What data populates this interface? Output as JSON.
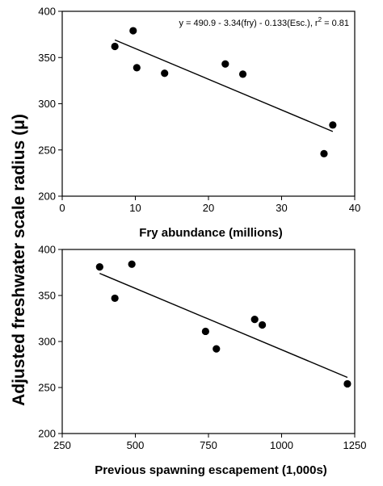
{
  "shared_ylabel": "Adjusted freshwater scale radius (μ)",
  "chart_data": [
    {
      "type": "scatter",
      "xlabel": "Fry abundance (millions)",
      "xlim": [
        0,
        40
      ],
      "ylim": [
        200,
        400
      ],
      "xticks": [
        0,
        10,
        20,
        30,
        40
      ],
      "yticks": [
        200,
        250,
        300,
        350,
        400
      ],
      "annotation": {
        "prefix": "y = 490.9 - 3.34(fry) - 0.133(Esc.),  r",
        "sup": "2",
        "suffix": " = 0.81"
      },
      "points": [
        {
          "x": 7.2,
          "y": 362
        },
        {
          "x": 9.7,
          "y": 379
        },
        {
          "x": 10.2,
          "y": 339
        },
        {
          "x": 14.0,
          "y": 333
        },
        {
          "x": 22.3,
          "y": 343
        },
        {
          "x": 24.7,
          "y": 332
        },
        {
          "x": 35.8,
          "y": 246
        },
        {
          "x": 37.0,
          "y": 277
        }
      ],
      "trendline": [
        [
          7.2,
          369
        ],
        [
          37.0,
          270
        ]
      ]
    },
    {
      "type": "scatter",
      "xlabel": "Previous spawning escapement (1,000s)",
      "xlim": [
        250,
        1250
      ],
      "ylim": [
        200,
        400
      ],
      "xticks": [
        250,
        500,
        750,
        1000,
        1250
      ],
      "yticks": [
        200,
        250,
        300,
        350,
        400
      ],
      "points": [
        {
          "x": 378,
          "y": 381
        },
        {
          "x": 430,
          "y": 347
        },
        {
          "x": 488,
          "y": 384
        },
        {
          "x": 740,
          "y": 311
        },
        {
          "x": 777,
          "y": 292
        },
        {
          "x": 908,
          "y": 324
        },
        {
          "x": 934,
          "y": 318
        },
        {
          "x": 1225,
          "y": 254
        }
      ],
      "trendline": [
        [
          378,
          374
        ],
        [
          1225,
          261
        ]
      ]
    }
  ]
}
